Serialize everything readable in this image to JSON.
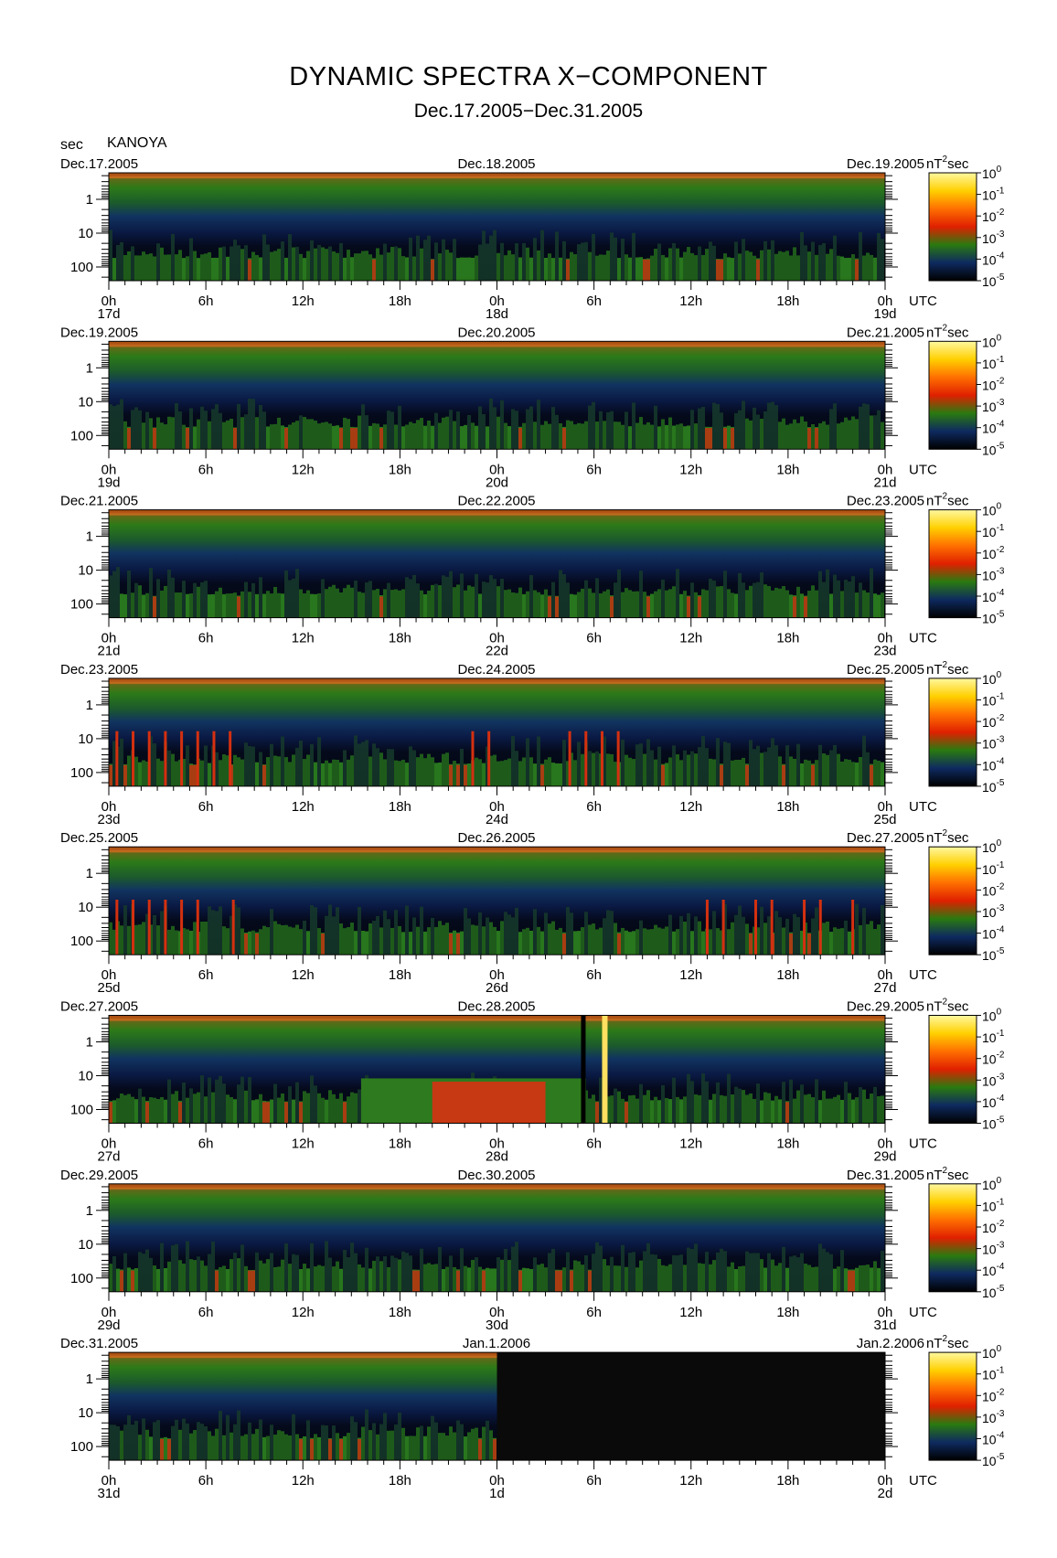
{
  "title": "DYNAMIC SPECTRA X−COMPONENT",
  "subtitle": "Dec.17.2005−Dec.31.2005",
  "y_unit_label": "sec",
  "station": "KANOYA",
  "colorbar": {
    "unit_text": "nT",
    "unit_sup": "2",
    "unit_suffix": "sec",
    "tick_base": "10",
    "tick_exponents": [
      "0",
      "-1",
      "-2",
      "-3",
      "-4",
      "-5"
    ],
    "colors": [
      "#fff8a0",
      "#ffd000",
      "#ff7000",
      "#e02000",
      "#2a7a10",
      "#0e2a60",
      "#000000"
    ]
  },
  "x_tick_labels": [
    "0h",
    "6h",
    "12h",
    "18h",
    "0h",
    "6h",
    "12h",
    "18h",
    "0h"
  ],
  "x_unit": "UTC",
  "y_tick_labels": [
    "1",
    "10",
    "100"
  ],
  "chart_data": [
    {
      "type": "heatmap",
      "title_left": "Dec.17.2005",
      "title_mid": "Dec.18.2005",
      "title_right": "Dec.19.2005",
      "day_labels": [
        "17d",
        "18d",
        "19d"
      ],
      "x_range_hours": [
        0,
        48
      ],
      "y_range_sec_log": [
        0.2,
        300
      ],
      "activity": "moderate",
      "nodata_from_hour": null
    },
    {
      "type": "heatmap",
      "title_left": "Dec.19.2005",
      "title_mid": "Dec.20.2005",
      "title_right": "Dec.21.2005",
      "day_labels": [
        "19d",
        "20d",
        "21d"
      ],
      "x_range_hours": [
        0,
        48
      ],
      "y_range_sec_log": [
        0.2,
        300
      ],
      "activity": "moderate",
      "nodata_from_hour": null
    },
    {
      "type": "heatmap",
      "title_left": "Dec.21.2005",
      "title_mid": "Dec.22.2005",
      "title_right": "Dec.23.2005",
      "day_labels": [
        "21d",
        "22d",
        "23d"
      ],
      "x_range_hours": [
        0,
        48
      ],
      "y_range_sec_log": [
        0.2,
        300
      ],
      "activity": "moderate",
      "nodata_from_hour": null
    },
    {
      "type": "heatmap",
      "title_left": "Dec.23.2005",
      "title_mid": "Dec.24.2005",
      "title_right": "Dec.25.2005",
      "day_labels": [
        "23d",
        "24d",
        "25d"
      ],
      "x_range_hours": [
        0,
        48
      ],
      "y_range_sec_log": [
        0.2,
        300
      ],
      "activity": "pulses",
      "nodata_from_hour": null
    },
    {
      "type": "heatmap",
      "title_left": "Dec.25.2005",
      "title_mid": "Dec.26.2005",
      "title_right": "Dec.27.2005",
      "day_labels": [
        "25d",
        "26d",
        "27d"
      ],
      "x_range_hours": [
        0,
        48
      ],
      "y_range_sec_log": [
        0.2,
        300
      ],
      "activity": "pulses",
      "nodata_from_hour": null
    },
    {
      "type": "heatmap",
      "title_left": "Dec.27.2005",
      "title_mid": "Dec.28.2005",
      "title_right": "Dec.29.2005",
      "day_labels": [
        "27d",
        "28d",
        "29d"
      ],
      "x_range_hours": [
        0,
        48
      ],
      "y_range_sec_log": [
        0.2,
        300
      ],
      "activity": "strong",
      "spike_hour": 30.5,
      "nodata_from_hour": null
    },
    {
      "type": "heatmap",
      "title_left": "Dec.29.2005",
      "title_mid": "Dec.30.2005",
      "title_right": "Dec.31.2005",
      "day_labels": [
        "29d",
        "30d",
        "31d"
      ],
      "x_range_hours": [
        0,
        48
      ],
      "y_range_sec_log": [
        0.2,
        300
      ],
      "activity": "moderate",
      "nodata_from_hour": null
    },
    {
      "type": "heatmap",
      "title_left": "Dec.31.2005",
      "title_mid": "Jan.1.2006",
      "title_right": "Jan.2.2006",
      "day_labels": [
        "31d",
        "1d",
        "2d"
      ],
      "x_range_hours": [
        0,
        48
      ],
      "y_range_sec_log": [
        0.2,
        300
      ],
      "activity": "moderate",
      "nodata_from_hour": 24
    }
  ]
}
